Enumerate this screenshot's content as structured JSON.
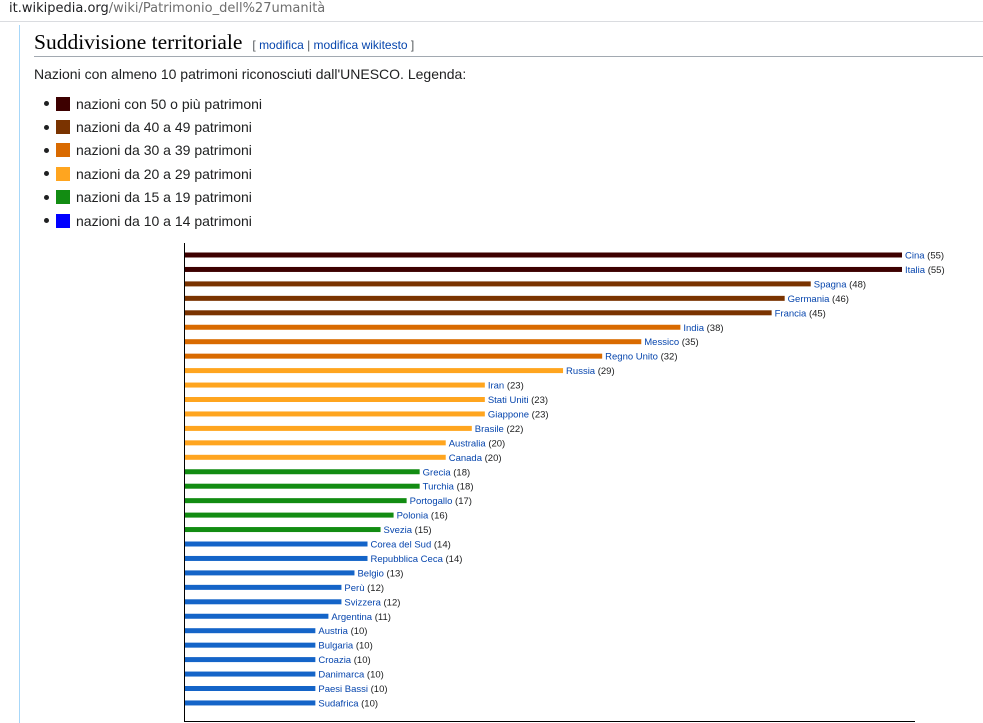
{
  "address_bar": {
    "host": "it.wikipedia.org",
    "path": "/wiki/Patrimonio_dell%27umanità"
  },
  "section": {
    "title": "Suddivisione territoriale",
    "edit_open": "[ ",
    "edit_link": "modifica",
    "edit_sep": " | ",
    "edit_source_link": "modifica wikitesto",
    "edit_close": " ]"
  },
  "intro": "Nazioni con almeno 10 patrimoni riconosciuti dall'UNESCO. Legenda:",
  "legend": [
    {
      "label": "nazioni con 50 o più patrimoni",
      "color": "#3d0000"
    },
    {
      "label": "nazioni da 40 a 49 patrimoni",
      "color": "#7a3300"
    },
    {
      "label": "nazioni da 30 a 39 patrimoni",
      "color": "#d96a00"
    },
    {
      "label": "nazioni da 20 a 29 patrimoni",
      "color": "#ffa51f"
    },
    {
      "label": "nazioni da 15 a 19 patrimoni",
      "color": "#128c12"
    },
    {
      "label": "nazioni da 10 a 14 patrimoni",
      "color": "#0000ff"
    }
  ],
  "chart_data": {
    "type": "bar",
    "orientation": "horizontal",
    "categories": [
      "Cina",
      "Italia",
      "Spagna",
      "Germania",
      "Francia",
      "India",
      "Messico",
      "Regno Unito",
      "Russia",
      "Iran",
      "Stati Uniti",
      "Giappone",
      "Brasile",
      "Australia",
      "Canada",
      "Grecia",
      "Turchia",
      "Portogallo",
      "Polonia",
      "Svezia",
      "Corea del Sud",
      "Repubblica Ceca",
      "Belgio",
      "Perù",
      "Svizzera",
      "Argentina",
      "Austria",
      "Bulgaria",
      "Croazia",
      "Danimarca",
      "Paesi Bassi",
      "Sudafrica"
    ],
    "values": [
      55,
      55,
      48,
      46,
      45,
      38,
      35,
      32,
      29,
      23,
      23,
      23,
      22,
      20,
      20,
      18,
      18,
      17,
      16,
      15,
      14,
      14,
      13,
      12,
      12,
      11,
      10,
      10,
      10,
      10,
      10,
      10
    ],
    "value_labels": [
      "(55)",
      "(55)",
      "(48)",
      "(46)",
      "(45)",
      "(38)",
      "(35)",
      "(32)",
      "(29)",
      "(23)",
      "(23)",
      "(23)",
      "(22)",
      "(20)",
      "(20)",
      "(18)",
      "(18)",
      "(17)",
      "(16)",
      "(15)",
      "(14)",
      "(14)",
      "(13)",
      "(12)",
      "(12)",
      "(11)",
      "(10)",
      "(10)",
      "(10)",
      "(10)",
      "(10)",
      "(10)"
    ],
    "bar_colors": {
      "50-plus": "#3d0000",
      "40-49": "#7a3300",
      "30-39": "#d96a00",
      "20-29": "#ffa51f",
      "15-19": "#128c12",
      "10-14": "#1464c8"
    },
    "xlim": [
      0,
      55
    ]
  }
}
